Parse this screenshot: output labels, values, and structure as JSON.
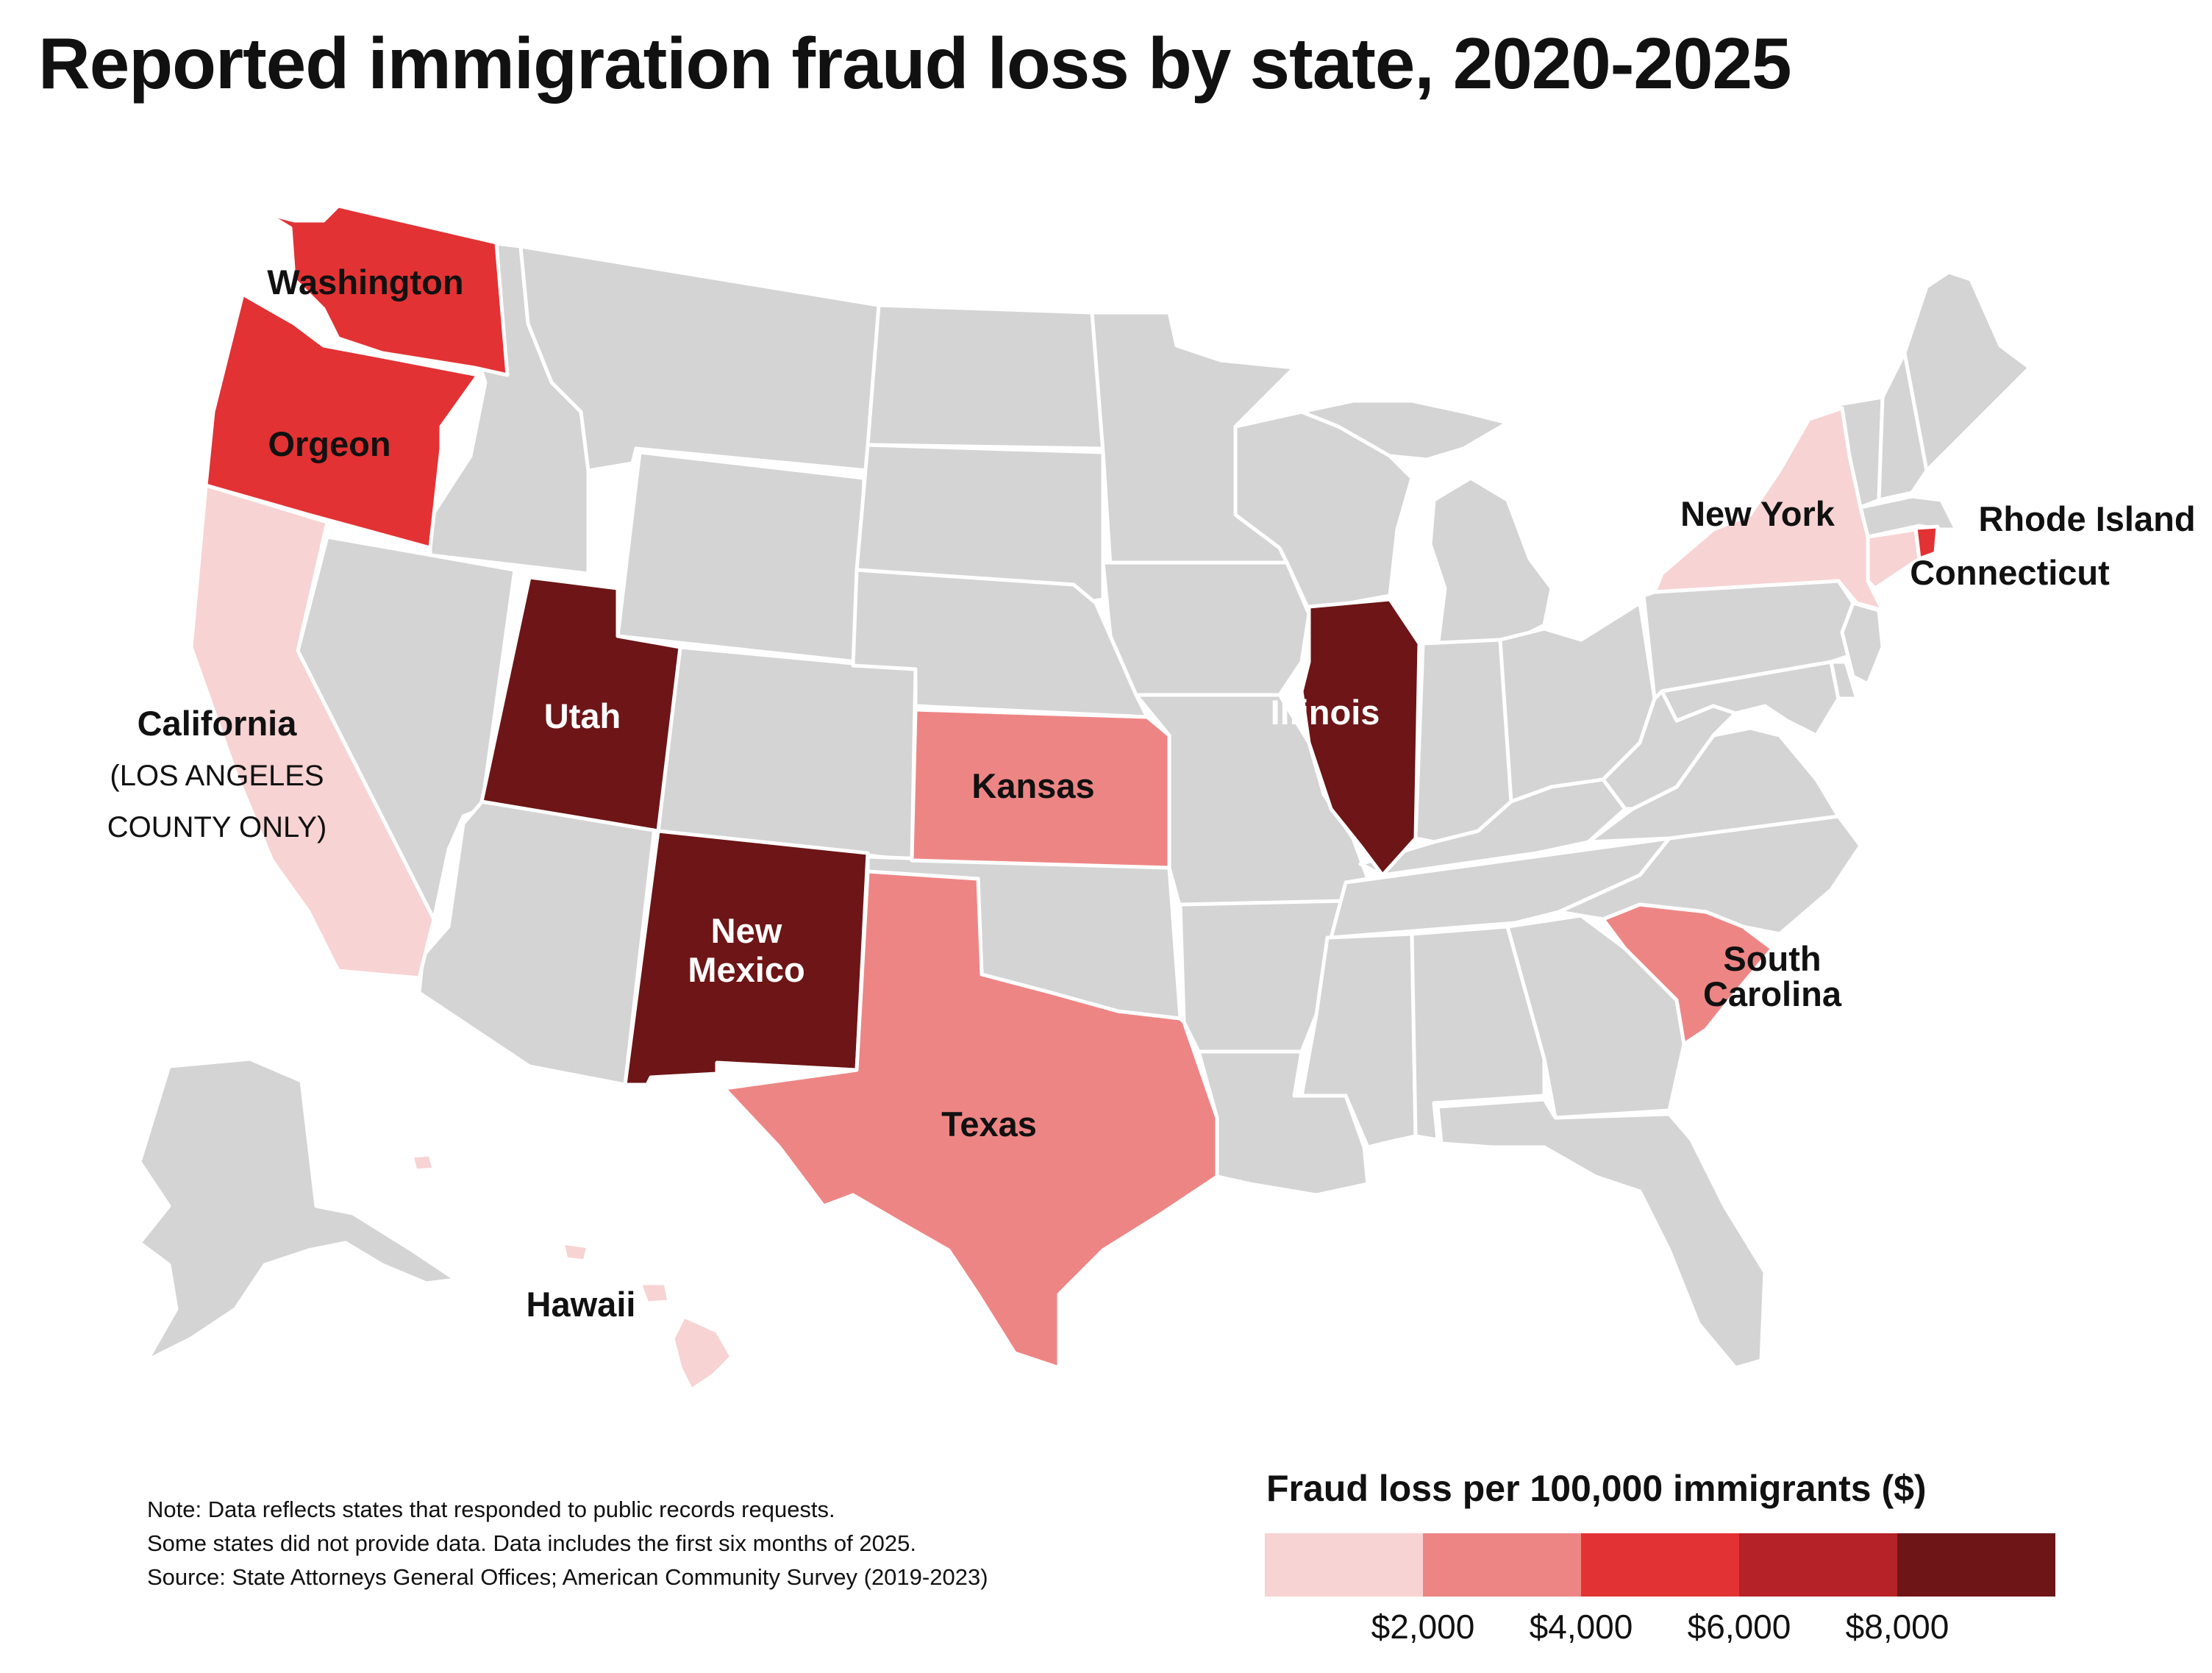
{
  "title": "Reported immigration fraud loss by state, 2020-2025",
  "colors": {
    "no_data": "#d4d4d4",
    "bin1": "#f8d3d3",
    "bin2": "#ee8585",
    "bin3": "#e33234",
    "bin4": "#b52227",
    "bin5": "#6e1517",
    "border": "#ffffff"
  },
  "legend": {
    "title": "Fraud loss per 100,000 immigrants ($)",
    "bins": [
      {
        "color": "#f8d3d3"
      },
      {
        "color": "#ee8585"
      },
      {
        "color": "#e33234"
      },
      {
        "color": "#b52227"
      },
      {
        "color": "#6e1517"
      }
    ],
    "ticks": [
      "$2,000",
      "$4,000",
      "$6,000",
      "$8,000"
    ]
  },
  "states": {
    "washington": {
      "label": "Washington",
      "color": "#e33234"
    },
    "oregon": {
      "label": "Orgeon",
      "color": "#e33234"
    },
    "california": {
      "label": "California",
      "sublabel1": "(LOS ANGELES",
      "sublabel2": "COUNTY ONLY)",
      "color": "#f8d3d3"
    },
    "utah": {
      "label": "Utah",
      "color": "#6e1517"
    },
    "new_mexico": {
      "label1": "New",
      "label2": "Mexico",
      "color": "#6e1517"
    },
    "kansas": {
      "label": "Kansas",
      "color": "#ee8585"
    },
    "texas": {
      "label": "Texas",
      "color": "#ee8585"
    },
    "illinois": {
      "label": "Illinois",
      "color": "#6e1517"
    },
    "new_york": {
      "label": "New York",
      "color": "#f8d3d3"
    },
    "rhode_island": {
      "label": "Rhode Island",
      "color": "#e33234"
    },
    "connecticut": {
      "label": "Connecticut",
      "color": "#f8d3d3"
    },
    "south_carolina": {
      "label1": "South",
      "label2": "Carolina",
      "color": "#ee8585"
    },
    "hawaii": {
      "label": "Hawaii",
      "color": "#f8d3d3"
    }
  },
  "notes": [
    "Note: Data reflects states that responded to public records requests.",
    "Some states did not provide data. Data includes the first six months of 2025.",
    "Source: State Attorneys General Offices; American Community Survey (2019-2023)"
  ]
}
